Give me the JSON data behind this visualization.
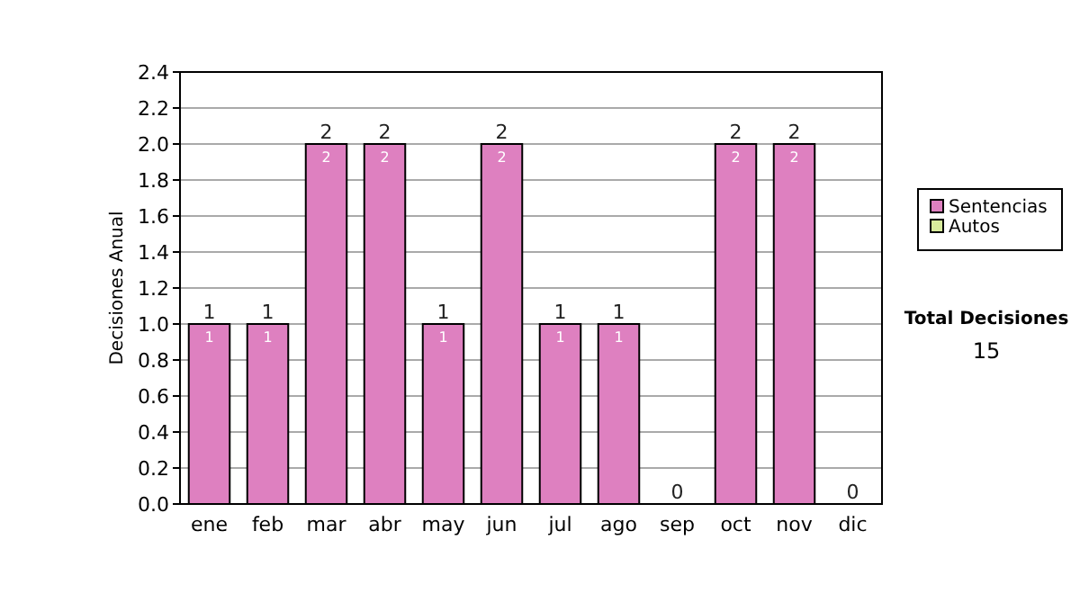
{
  "chart_data": {
    "type": "bar",
    "stacked": true,
    "ylabel": "Decisiones Anual",
    "categories": [
      "ene",
      "feb",
      "mar",
      "abr",
      "may",
      "jun",
      "jul",
      "ago",
      "sep",
      "oct",
      "nov",
      "dic"
    ],
    "series": [
      {
        "name": "Sentencias",
        "color": "#de80c0",
        "values": [
          1,
          1,
          2,
          2,
          1,
          2,
          1,
          1,
          0,
          2,
          2,
          0
        ],
        "value_labels": [
          "1",
          "1",
          "2",
          "2",
          "1",
          "2",
          "1",
          "1",
          null,
          "2",
          "2",
          null
        ]
      },
      {
        "name": "Autos",
        "color": "#d8ec9c",
        "values": [
          0,
          0,
          0,
          0,
          0,
          0,
          0,
          0,
          0,
          0,
          0,
          0
        ]
      }
    ],
    "totals": [
      "1",
      "1",
      "2",
      "2",
      "1",
      "2",
      "1",
      "1",
      "0",
      "2",
      "2",
      "0"
    ],
    "ylim": [
      0,
      2.4
    ],
    "yticks": [
      {
        "value": 0,
        "label": "0.0"
      },
      {
        "value": 0.2,
        "label": "0.2"
      },
      {
        "value": 0.4,
        "label": "0.4"
      },
      {
        "value": 0.6,
        "label": "0.6"
      },
      {
        "value": 0.8,
        "label": "0.8"
      },
      {
        "value": 1,
        "label": "1.0"
      },
      {
        "value": 1.2,
        "label": "1.2"
      },
      {
        "value": 1.4,
        "label": "1.4"
      },
      {
        "value": 1.6,
        "label": "1.6"
      },
      {
        "value": 1.8,
        "label": "1.8"
      },
      {
        "value": 2,
        "label": "2.0"
      },
      {
        "value": 2.2,
        "label": "2.2"
      },
      {
        "value": 2.4,
        "label": "2.4"
      }
    ],
    "grid": "y",
    "legend": "right",
    "annotations": [
      "Total Decisiones",
      "15"
    ]
  }
}
